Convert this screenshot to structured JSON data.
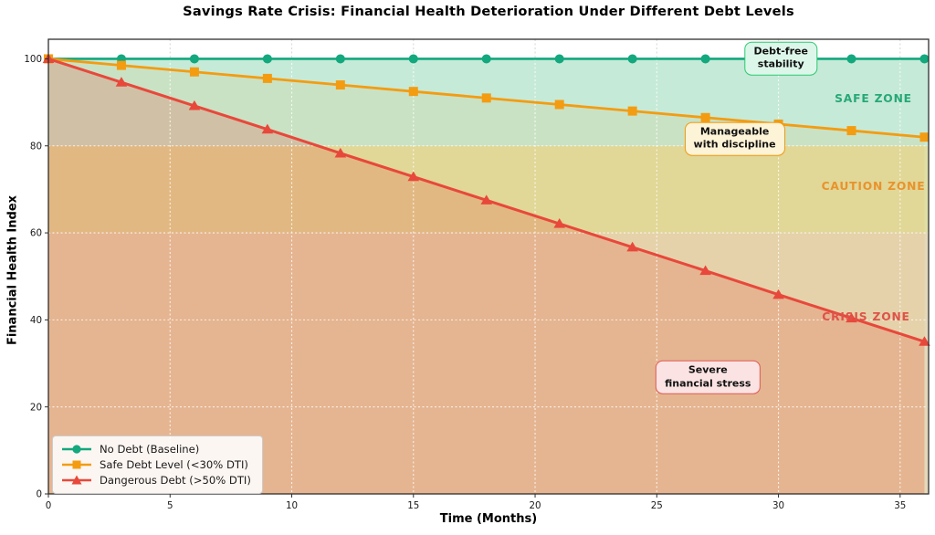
{
  "title": "Savings Rate Crisis: Financial Health Deterioration Under Different Debt Levels",
  "xlabel": "Time (Months)",
  "ylabel": "Financial Health Index",
  "chart_data": {
    "type": "line",
    "x": [
      0,
      3,
      6,
      9,
      12,
      15,
      18,
      21,
      24,
      27,
      30,
      33,
      36
    ],
    "series": [
      {
        "name": "No Debt (Baseline)",
        "color": "#13a87e",
        "marker": "circle",
        "line_width": 2.6,
        "fill": null,
        "values": [
          100,
          100,
          100,
          100,
          100,
          100,
          100,
          100,
          100,
          100,
          100,
          100,
          100
        ]
      },
      {
        "name": "Safe Debt Level (<30% DTI)",
        "color": "#f39c12",
        "marker": "square",
        "line_width": 2.8,
        "fill": "rgba(243,156,18,0.10)",
        "values": [
          100,
          98.5,
          97,
          95.5,
          94,
          92.5,
          91,
          89.5,
          88,
          86.5,
          85,
          83.5,
          82
        ]
      },
      {
        "name": "Dangerous Debt (>50% DTI)",
        "color": "#e8483b",
        "marker": "triangle",
        "line_width": 3,
        "fill": "rgba(231,76,60,0.22)",
        "values": [
          100,
          94.6,
          89.2,
          83.8,
          78.3,
          72.9,
          67.5,
          62.1,
          56.7,
          51.3,
          45.8,
          40.4,
          35
        ]
      }
    ],
    "xlim": [
      0,
      36.17
    ],
    "ylim": [
      0,
      104.5
    ],
    "xticks": [
      0,
      5,
      10,
      15,
      20,
      25,
      30,
      35
    ],
    "yticks": [
      0,
      20,
      40,
      60,
      80,
      100
    ],
    "grid": true,
    "legend_position": "lower left",
    "zones": [
      {
        "label": "SAFE ZONE",
        "from": 80,
        "to": 100,
        "color": "#c6ead8",
        "label_color": "#27a876",
        "label_at": {
          "x": 33.9,
          "y": 90.9
        }
      },
      {
        "label": "CAUTION ZONE",
        "from": 60,
        "to": 80,
        "color": "#dfdea6",
        "label_color": "#e8932c",
        "label_at": {
          "x": 33.9,
          "y": 70.7
        }
      },
      {
        "label": "CRISIS ZONE",
        "from": 0,
        "to": 60,
        "color": "#e4d8bb",
        "label_color": "#de5348",
        "label_at": {
          "x": 33.6,
          "y": 40.7
        }
      }
    ],
    "annotations": [
      {
        "text": "Debt-free\nstability",
        "at": {
          "x": 30.1,
          "y": 100.1
        },
        "bg": "#dcf7ea",
        "border": "#2ecc71"
      },
      {
        "text": "Manageable\nwith discipline",
        "at": {
          "x": 28.2,
          "y": 81.6
        },
        "bg": "#fdf3d6",
        "border": "#f39c12"
      },
      {
        "text": "Severe\nfinancial stress",
        "at": {
          "x": 27.1,
          "y": 26.8
        },
        "bg": "#fce3e3",
        "border": "#e05c55"
      }
    ]
  }
}
